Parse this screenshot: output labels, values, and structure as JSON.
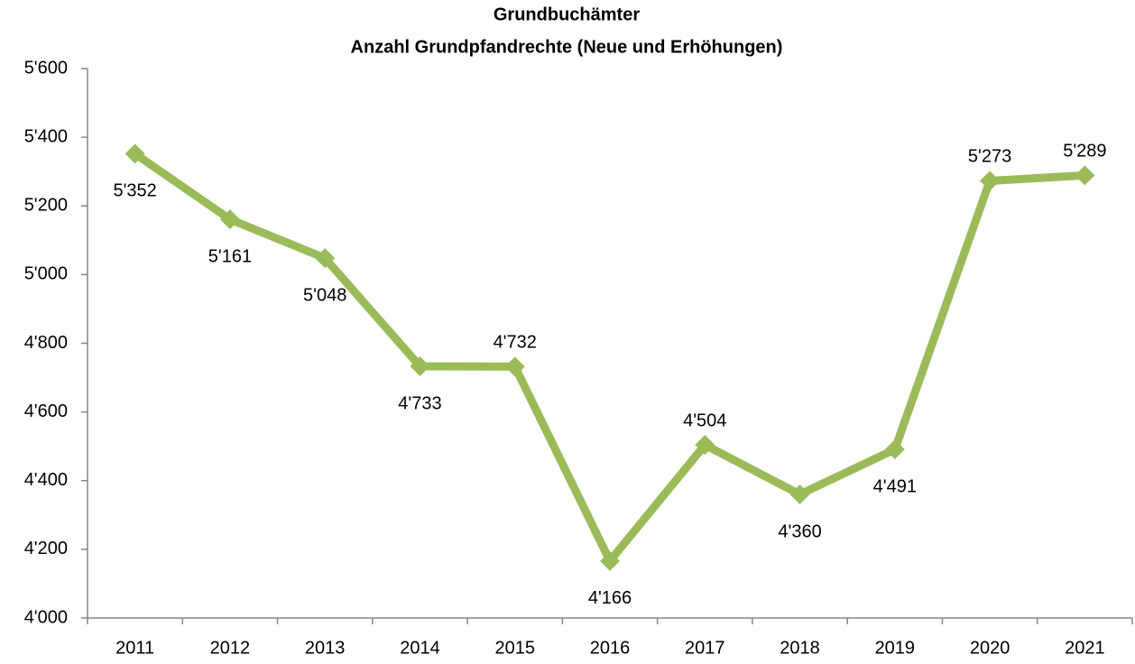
{
  "chart_data": {
    "type": "line",
    "title": "Grundbuchämter",
    "subtitle": "Anzahl Grundpfandrechte (Neue und Erhöhungen)",
    "categories": [
      "2011",
      "2012",
      "2013",
      "2014",
      "2015",
      "2016",
      "2017",
      "2018",
      "2019",
      "2020",
      "2021"
    ],
    "values": [
      5352,
      5161,
      5048,
      4733,
      4732,
      4166,
      4504,
      4360,
      4491,
      5273,
      5289
    ],
    "value_labels": [
      "5'352",
      "5'161",
      "5'048",
      "4'733",
      "4'732",
      "4'166",
      "4'504",
      "4'360",
      "4'491",
      "5'273",
      "5'289"
    ],
    "color": "#9bbb59",
    "ylim": [
      4000,
      5600
    ],
    "yticks": [
      {
        "value": 4000,
        "label": "4'000"
      },
      {
        "value": 4200,
        "label": "4'200"
      },
      {
        "value": 4400,
        "label": "4'400"
      },
      {
        "value": 4600,
        "label": "4'600"
      },
      {
        "value": 4800,
        "label": "4'800"
      },
      {
        "value": 5000,
        "label": "5'000"
      },
      {
        "value": 5200,
        "label": "5'200"
      },
      {
        "value": 5400,
        "label": "5'400"
      },
      {
        "value": 5600,
        "label": "5'600"
      }
    ],
    "grid": false
  }
}
